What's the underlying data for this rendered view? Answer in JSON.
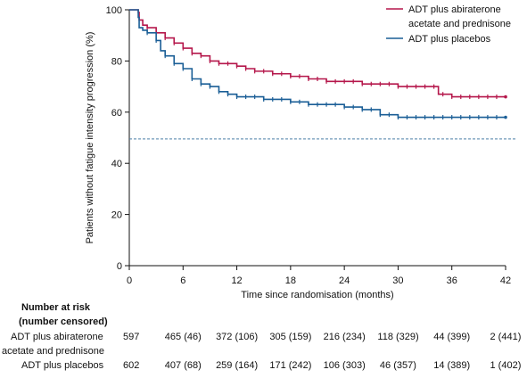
{
  "chart_data": {
    "type": "line",
    "xlabel": "Time since randomisation (months)",
    "ylabel": "Patients without fatigue intensity progression (%)",
    "xlim": [
      0,
      42
    ],
    "ylim": [
      0,
      100
    ],
    "x_ticks": [
      0,
      6,
      12,
      18,
      24,
      30,
      36,
      42
    ],
    "y_ticks": [
      0,
      20,
      40,
      60,
      80,
      100
    ],
    "reference_line": {
      "y": 49.5,
      "style": "dashed",
      "color": "#4a7ea6"
    },
    "legend_position": "top-right",
    "series": [
      {
        "name": "ADT plus abiraterone acetate and prednisone",
        "color": "#b5174b",
        "points": [
          [
            0,
            100
          ],
          [
            0.5,
            100
          ],
          [
            1,
            99
          ],
          [
            1.1,
            96
          ],
          [
            1.5,
            94
          ],
          [
            2,
            93
          ],
          [
            3,
            91
          ],
          [
            4,
            89
          ],
          [
            5,
            87
          ],
          [
            6,
            85
          ],
          [
            7,
            83
          ],
          [
            8,
            82
          ],
          [
            9,
            80
          ],
          [
            10,
            79
          ],
          [
            12,
            78
          ],
          [
            13,
            77
          ],
          [
            14,
            76
          ],
          [
            16,
            75
          ],
          [
            18,
            74
          ],
          [
            20,
            73
          ],
          [
            22,
            72
          ],
          [
            24,
            72
          ],
          [
            26,
            71
          ],
          [
            28,
            71
          ],
          [
            30,
            70
          ],
          [
            32,
            70
          ],
          [
            34,
            70
          ],
          [
            34.5,
            67
          ],
          [
            36,
            66
          ],
          [
            38,
            66
          ],
          [
            40,
            66
          ],
          [
            42,
            66
          ]
        ],
        "censor_x": [
          2,
          3,
          4,
          5,
          6,
          7,
          8,
          9,
          10,
          11,
          12,
          13,
          14,
          15,
          16,
          17,
          18,
          19,
          20,
          21,
          22,
          23,
          24,
          25,
          26,
          27,
          28,
          29,
          30,
          31,
          32,
          33,
          34,
          35,
          36,
          37,
          38,
          39,
          40,
          41
        ]
      },
      {
        "name": "ADT plus placebos",
        "color": "#1a5e96",
        "points": [
          [
            0,
            100
          ],
          [
            0.5,
            100
          ],
          [
            1,
            97
          ],
          [
            1.1,
            93
          ],
          [
            1.5,
            92
          ],
          [
            2,
            91
          ],
          [
            3,
            88
          ],
          [
            3.5,
            84
          ],
          [
            4,
            82
          ],
          [
            5,
            79
          ],
          [
            6,
            77
          ],
          [
            7,
            73
          ],
          [
            8,
            71
          ],
          [
            9,
            70
          ],
          [
            10,
            68
          ],
          [
            11,
            67
          ],
          [
            12,
            66
          ],
          [
            14,
            66
          ],
          [
            15,
            65
          ],
          [
            16,
            65
          ],
          [
            18,
            64
          ],
          [
            20,
            63
          ],
          [
            22,
            63
          ],
          [
            24,
            62
          ],
          [
            26,
            61
          ],
          [
            28,
            59
          ],
          [
            30,
            58
          ],
          [
            34,
            58
          ],
          [
            36,
            58
          ],
          [
            42,
            58
          ]
        ],
        "censor_x": [
          2,
          3,
          4,
          5,
          6,
          7,
          8,
          9,
          10,
          11,
          12,
          13,
          14,
          15,
          16,
          17,
          18,
          19,
          20,
          21,
          22,
          23,
          24,
          25,
          26,
          27,
          28,
          29,
          30,
          31,
          32,
          33,
          34,
          35,
          36,
          37,
          38,
          39,
          40,
          41
        ]
      }
    ]
  },
  "risk_table": {
    "header_line1": "Number at risk",
    "header_line2": "(number censored)",
    "rows": [
      {
        "label_line1": "ADT plus abiraterone",
        "label_line2": "acetate and prednisone",
        "values": [
          "597",
          "465 (46)",
          "372 (106)",
          "305 (159)",
          "216 (234)",
          "118 (329)",
          "44 (399)",
          "2 (441)"
        ]
      },
      {
        "label_line1": "ADT plus placebos",
        "label_line2": "",
        "values": [
          "602",
          "407 (68)",
          "259 (164)",
          "171 (242)",
          "106 (303)",
          "46 (357)",
          "14 (389)",
          "1 (402)"
        ]
      }
    ]
  }
}
